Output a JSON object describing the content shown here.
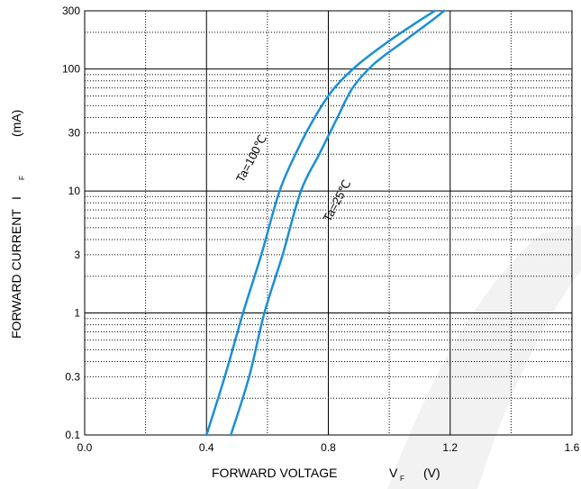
{
  "chart_data": {
    "type": "line",
    "title": "",
    "x_axis": {
      "label": "FORWARD VOLTAGE",
      "symbol": "V",
      "subscript": "F",
      "unit": "(V)",
      "range": [
        0.0,
        1.6
      ],
      "major_ticks": [
        0.0,
        0.4,
        0.8,
        1.2,
        1.6
      ],
      "tick_labels": [
        "0.0",
        "0.4",
        "0.8",
        "1.2",
        "1.6"
      ],
      "minor_ticks": [
        0.2,
        0.6,
        1.0,
        1.4
      ]
    },
    "y_axis": {
      "label": "FORWARD CURRENT",
      "symbol": "I",
      "subscript": "F",
      "unit": "(mA)",
      "scale": "log",
      "range": [
        0.1,
        300
      ],
      "tick_values": [
        0.1,
        0.3,
        1,
        3,
        10,
        30,
        100,
        300
      ],
      "tick_labels": [
        "0.1",
        "0.3",
        "1",
        "3",
        "10",
        "30",
        "100",
        "300"
      ],
      "decades": [
        0.1,
        1,
        10,
        100
      ]
    },
    "grid": true,
    "series": [
      {
        "name": "Ta=100℃",
        "color": "#1a8fd6",
        "x": [
          0.4,
          0.46,
          0.52,
          0.58,
          0.64,
          0.7,
          0.76,
          0.82,
          0.9,
          1.0,
          1.1,
          1.15
        ],
        "y": [
          0.1,
          0.3,
          1,
          3,
          10,
          22,
          42,
          70,
          110,
          170,
          250,
          300
        ]
      },
      {
        "name": "Ta=25℃",
        "color": "#1a8fd6",
        "x": [
          0.48,
          0.54,
          0.59,
          0.65,
          0.71,
          0.77,
          0.83,
          0.88,
          0.95,
          1.05,
          1.14,
          1.18
        ],
        "y": [
          0.1,
          0.3,
          1,
          3,
          10,
          20,
          40,
          70,
          110,
          170,
          250,
          300
        ]
      }
    ]
  }
}
